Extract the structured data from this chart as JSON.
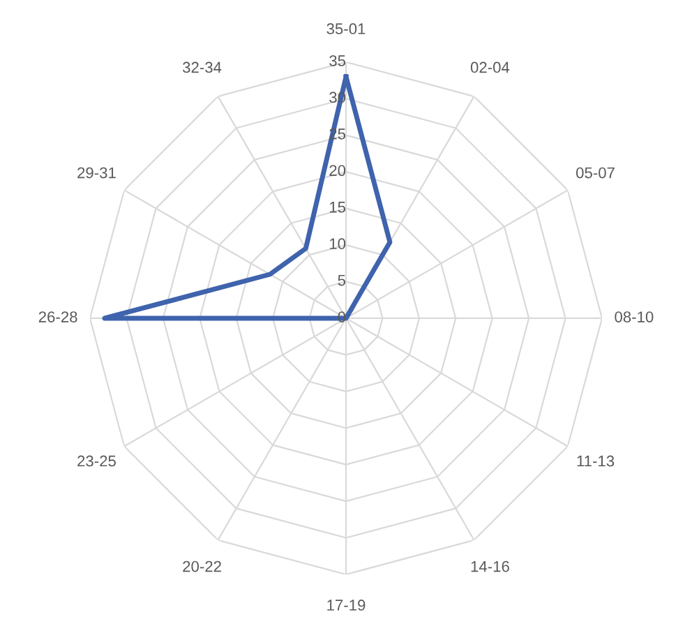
{
  "chart_data": {
    "type": "radar",
    "categories": [
      "35-01",
      "02-04",
      "05-07",
      "08-10",
      "11-13",
      "14-16",
      "17-19",
      "20-22",
      "23-25",
      "26-28",
      "29-31",
      "32-34"
    ],
    "series": [
      {
        "color": "#3f63ad",
        "values": [
          33,
          12,
          0,
          0,
          0,
          0,
          0,
          0,
          0,
          33,
          12,
          11
        ]
      }
    ],
    "ylim": [
      0,
      35
    ],
    "yticks": [
      0,
      5,
      10,
      15,
      20,
      25,
      30,
      35
    ],
    "grid": true,
    "legend": false,
    "marker": "none",
    "line_style": "solid"
  }
}
